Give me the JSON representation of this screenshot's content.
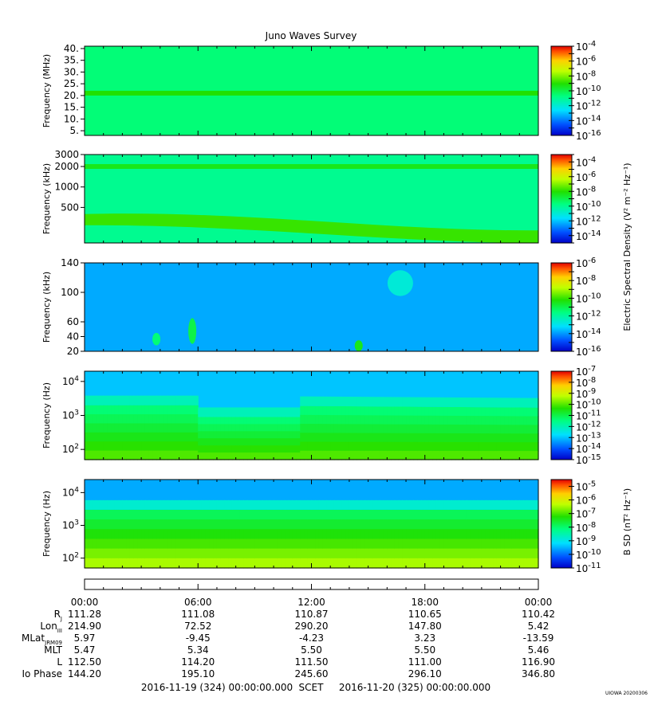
{
  "title": "Juno Waves Survey",
  "footer": {
    "start": "2016-11-19 (324) 00:00:00.000",
    "scet": "SCET",
    "end": "2016-11-20 (325) 00:00:00.000",
    "stamp": "UIOWA 20200306"
  },
  "colorbar_labels": {
    "electric": "Electric Spectral Density (V² m⁻² Hz⁻¹)",
    "magnetic": "B SD (nT² Hz⁻¹)"
  },
  "time_ticks": [
    "00:00",
    "06:00",
    "12:00",
    "18:00",
    "00:00"
  ],
  "ephemeris": [
    {
      "label": "R",
      "sub": "J",
      "values": [
        "111.28",
        "111.08",
        "110.87",
        "110.65",
        "110.42"
      ]
    },
    {
      "label": "Lon",
      "sub": "III",
      "values": [
        "214.90",
        "72.52",
        "290.20",
        "147.80",
        "5.42"
      ]
    },
    {
      "label": "MLat",
      "sub": "JRM09",
      "values": [
        "5.97",
        "-9.45",
        "-4.23",
        "3.23",
        "-13.59"
      ]
    },
    {
      "label": "MLT",
      "sub": "",
      "values": [
        "5.47",
        "5.34",
        "5.50",
        "5.50",
        "5.46"
      ]
    },
    {
      "label": "L",
      "sub": "",
      "values": [
        "112.50",
        "114.20",
        "111.50",
        "111.00",
        "116.90"
      ]
    },
    {
      "label": "Io Phase",
      "sub": "",
      "values": [
        "144.20",
        "195.10",
        "245.60",
        "296.10",
        "346.80"
      ]
    }
  ],
  "chart_data": [
    {
      "type": "heatmap",
      "panel": "high-frequency receiver",
      "ylabel": "Frequency (MHz)",
      "yscale": "linear",
      "ylim": [
        3,
        41
      ],
      "yticks": [
        "40.",
        "35.",
        "30.",
        "25.",
        "20.",
        "15.",
        "10.",
        "5."
      ],
      "yticks_values": [
        40,
        35,
        30,
        25,
        20,
        15,
        10,
        5
      ],
      "colorbar": {
        "min_exp": -16,
        "max_exp": -4,
        "labels": [
          "-4",
          "-6",
          "-8",
          "-10",
          "-12",
          "-14",
          "-16"
        ]
      },
      "features": [
        {
          "y": 21,
          "level": 0.58,
          "kind": "band"
        }
      ],
      "background_level": 0.45
    },
    {
      "type": "heatmap",
      "panel": "low-frequency receiver",
      "ylabel": "Frequency (kHz)",
      "yscale": "log",
      "ylim": [
        150,
        3000
      ],
      "yticks": [
        "3000",
        "2000",
        "1000",
        "500"
      ],
      "yticks_values": [
        3000,
        2000,
        1000,
        500
      ],
      "colorbar": {
        "min_exp": -15,
        "max_exp": -3,
        "labels": [
          "-4",
          "-6",
          "-8",
          "-10",
          "-12",
          "-14"
        ],
        "label_exps": [
          -4,
          -6,
          -8,
          -10,
          -12,
          -14
        ]
      },
      "features": [
        {
          "y": 2000,
          "level": 0.55,
          "kind": "band"
        },
        {
          "y_start": 330,
          "y_end": 190,
          "level": 0.6,
          "kind": "drifting-band"
        }
      ],
      "background_level": 0.42
    },
    {
      "type": "heatmap",
      "panel": "low-frequency receiver (high band)",
      "ylabel": "Frequency (kHz)",
      "yscale": "linear",
      "ylim": [
        20,
        140
      ],
      "yticks": [
        "140",
        "100",
        "60",
        "40",
        "20"
      ],
      "yticks_values": [
        140,
        100,
        60,
        40,
        20
      ],
      "colorbar": {
        "min_exp": -16,
        "max_exp": -6,
        "labels": [
          "-6",
          "-8",
          "-10",
          "-12",
          "-14",
          "-16"
        ]
      },
      "features": [
        {
          "time_h": 3.8,
          "y": [
            28,
            45
          ],
          "level": 0.45,
          "kind": "burst"
        },
        {
          "time_h": 5.7,
          "y": [
            30,
            65
          ],
          "level": 0.5,
          "kind": "burst"
        },
        {
          "time_h": 14.5,
          "y": [
            20,
            35
          ],
          "level": 0.55,
          "kind": "burst"
        },
        {
          "time_h": 16.7,
          "y": [
            95,
            130
          ],
          "level": 0.33,
          "kind": "blob"
        }
      ],
      "background_level": 0.22
    },
    {
      "type": "heatmap",
      "panel": "waveform receiver electric",
      "ylabel": "Frequency (Hz)",
      "yscale": "log",
      "ylim": [
        50,
        20000
      ],
      "yticks": [
        "10^4",
        "10^3",
        "10^2"
      ],
      "yticks_values": [
        10000,
        1000,
        100
      ],
      "colorbar": {
        "min_exp": -15,
        "max_exp": -7,
        "labels": [
          "-7",
          "-8",
          "-9",
          "-10",
          "-11",
          "-12",
          "-13",
          "-14",
          "-15"
        ]
      },
      "cutoff_hz": [
        {
          "time_h": 0,
          "freq": 2000
        },
        {
          "time_h": 5.9,
          "freq": 2000
        },
        {
          "time_h": 6.0,
          "freq": 900
        },
        {
          "time_h": 11.3,
          "freq": 900
        },
        {
          "time_h": 11.4,
          "freq": 1900
        },
        {
          "time_h": 24,
          "freq": 1700
        }
      ],
      "background_level": 0.25,
      "low_level": 0.62
    },
    {
      "type": "heatmap",
      "panel": "waveform receiver magnetic",
      "ylabel": "Frequency (Hz)",
      "yscale": "log",
      "ylim": [
        50,
        25000
      ],
      "yticks": [
        "10^4",
        "10^3",
        "10^2"
      ],
      "yticks_values": [
        10000,
        1000,
        100
      ],
      "colorbar": {
        "min_exp": -11,
        "max_exp": -4.5,
        "labels": [
          "-5",
          "-6",
          "-7",
          "-8",
          "-9",
          "-10",
          "-11"
        ]
      },
      "cutoff_hz": [
        {
          "time_h": 0,
          "freq": 3000
        },
        {
          "time_h": 24,
          "freq": 3000
        }
      ],
      "background_level": 0.22,
      "low_level": 0.7
    }
  ]
}
